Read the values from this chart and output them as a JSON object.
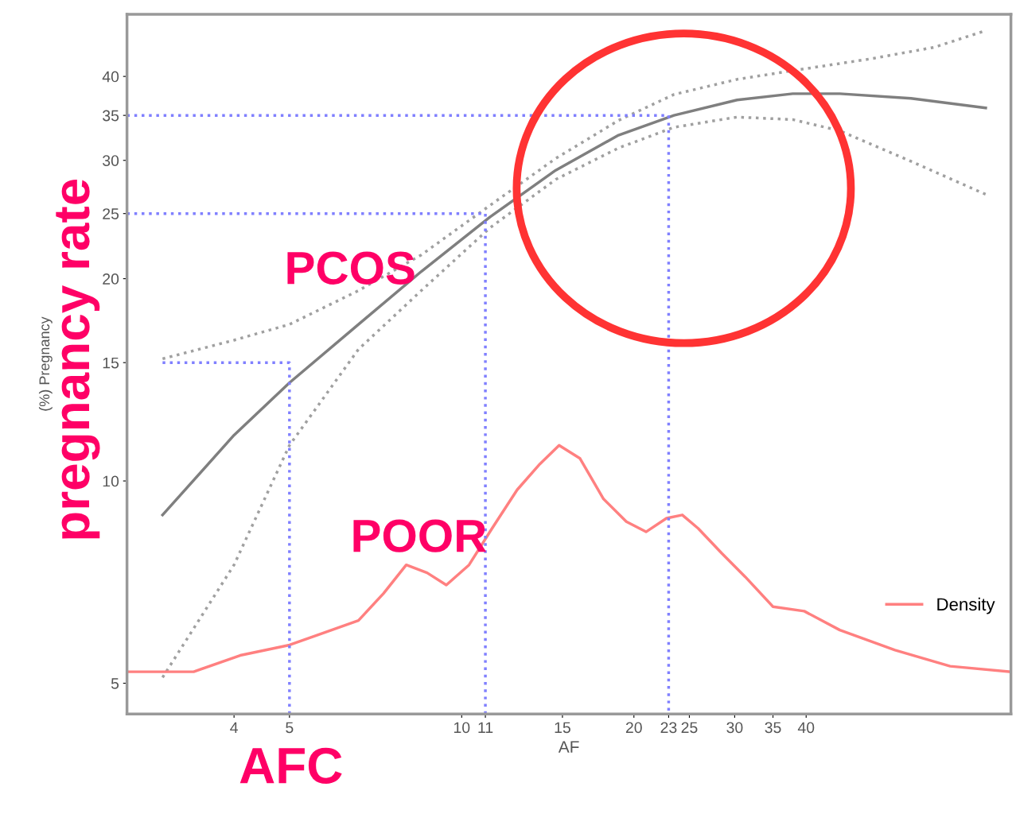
{
  "chart_data": {
    "type": "line",
    "xlabel": "AF",
    "ylabel": "(%) Pregnancy",
    "log": "xy",
    "grid": false,
    "legend": "bottom right",
    "line_style": "solid",
    "xlim": [
      2.6,
      91.2
    ],
    "ylim": [
      4.5,
      49.5
    ],
    "xticks": [
      4,
      5,
      10,
      11,
      15,
      20,
      23,
      25,
      30,
      35,
      40
    ],
    "yticks": [
      5,
      10,
      15,
      20,
      25,
      30,
      35,
      40
    ],
    "series": [
      {
        "color": "#7f7f7f",
        "x": [
          3.0,
          4.0,
          5.0,
          6.6,
          8.5,
          11.2,
          14.6,
          18.8,
          23.5,
          30.3,
          37.9,
          45.8,
          61.0,
          82.4
        ],
        "values": [
          8.9,
          11.7,
          14.0,
          17.1,
          20.5,
          24.7,
          29.0,
          32.7,
          35.0,
          36.9,
          37.7,
          37.7,
          37.1,
          35.9
        ]
      },
      {
        "color": "#a0a0a0",
        "line_style": "dotted",
        "x": [
          3.0,
          4.0,
          5.0,
          6.6,
          8.5,
          11.2,
          14.6,
          18.8,
          23.5,
          30.3,
          37.9,
          52.0,
          67.0,
          82.4
        ],
        "values": [
          15.2,
          16.2,
          17.1,
          19.2,
          21.7,
          25.7,
          30.2,
          34.4,
          37.6,
          39.6,
          40.8,
          42.5,
          44.2,
          46.8
        ]
      },
      {
        "color": "#a0a0a0",
        "line_style": "dotted",
        "x": [
          3.0,
          4.0,
          5.0,
          6.6,
          8.5,
          11.2,
          14.6,
          18.8,
          23.5,
          30.3,
          37.9,
          45.8,
          61.0,
          82.4
        ],
        "values": [
          5.1,
          7.5,
          11.3,
          15.7,
          19.2,
          23.8,
          28.1,
          31.3,
          33.6,
          34.8,
          34.5,
          33.2,
          29.9,
          26.7
        ]
      },
      {
        "name": "Density",
        "color": "#ff8080",
        "x": [
          2.6,
          3.4,
          4.1,
          5.0,
          5.6,
          6.6,
          7.3,
          8.0,
          8.7,
          9.4,
          10.3,
          11.3,
          12.5,
          13.7,
          14.8,
          16.1,
          17.7,
          19.4,
          21.0,
          22.8,
          24.3,
          25.9,
          28.5,
          31.3,
          35.0,
          39.7,
          45.8,
          57.2,
          71.4,
          91.2
        ],
        "values": [
          5.2,
          5.2,
          5.5,
          5.7,
          5.9,
          6.2,
          6.8,
          7.5,
          7.3,
          7.0,
          7.5,
          8.5,
          9.7,
          10.6,
          11.3,
          10.8,
          9.4,
          8.7,
          8.4,
          8.8,
          8.9,
          8.5,
          7.8,
          7.2,
          6.5,
          6.4,
          6.0,
          5.6,
          5.3,
          5.2
        ]
      },
      {
        "color": "#8080ff",
        "line_style": "dotted",
        "x": [
          2.6,
          23,
          23
        ],
        "values": [
          35,
          35,
          4.5
        ]
      },
      {
        "color": "#8080ff",
        "line_style": "dotted",
        "x": [
          2.6,
          11,
          11
        ],
        "values": [
          25,
          25,
          4.5
        ]
      },
      {
        "color": "#8080ff",
        "line_style": "dotted",
        "x": [
          3.0,
          5,
          5
        ],
        "values": [
          15,
          15,
          4.5
        ]
      }
    ],
    "annotations": [
      "pregnancy rate",
      "PCOS",
      "POOR",
      "AFC"
    ]
  }
}
